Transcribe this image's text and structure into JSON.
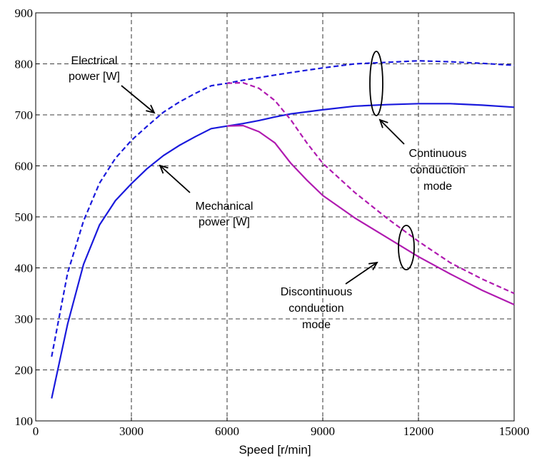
{
  "chart_data": {
    "type": "line",
    "xlabel": "Speed [r/min]",
    "ylabel": "",
    "xlim": [
      0,
      15000
    ],
    "ylim": [
      100,
      900
    ],
    "xticks": [
      0,
      3000,
      6000,
      9000,
      12000,
      15000
    ],
    "yticks": [
      100,
      200,
      300,
      400,
      500,
      600,
      700,
      800,
      900
    ],
    "grid": true,
    "colors": {
      "continuous": "#1a1adc",
      "discontinuous": "#b01ab0",
      "ink": "#000000"
    },
    "series": [
      {
        "id": "elec_cont",
        "style": "dashed",
        "color": "#1a1adc",
        "x": [
          500,
          1000,
          1500,
          2000,
          2500,
          3000,
          3500,
          4000,
          4500,
          5000,
          5500,
          6000,
          6500,
          7000,
          7500,
          8000,
          9000,
          10000,
          11000,
          12000,
          13000,
          14000,
          15000
        ],
        "y": [
          226,
          390,
          492,
          566,
          615,
          650,
          678,
          705,
          725,
          742,
          757,
          762,
          768,
          773,
          778,
          783,
          792,
          800,
          803,
          806,
          804,
          801,
          797
        ]
      },
      {
        "id": "mech_cont",
        "style": "solid",
        "color": "#1a1adc",
        "x": [
          500,
          1000,
          1500,
          2000,
          2500,
          3000,
          3500,
          4000,
          4500,
          5000,
          5500,
          6000,
          6500,
          7000,
          7500,
          8000,
          9000,
          10000,
          11000,
          12000,
          13000,
          14000,
          15000
        ],
        "y": [
          144,
          290,
          407,
          484,
          532,
          565,
          595,
          620,
          640,
          657,
          673,
          678,
          683,
          689,
          696,
          702,
          710,
          717,
          720,
          722,
          722,
          719,
          715
        ]
      },
      {
        "id": "elec_disc",
        "style": "dashed",
        "color": "#b01ab0",
        "x": [
          6000,
          6500,
          7000,
          7500,
          8000,
          8500,
          9000,
          10000,
          11000,
          12000,
          13000,
          14000,
          15000
        ],
        "y": [
          762,
          763,
          752,
          728,
          690,
          645,
          605,
          548,
          498,
          452,
          410,
          378,
          350
        ]
      },
      {
        "id": "mech_disc",
        "style": "solid",
        "color": "#b01ab0",
        "x": [
          6000,
          6500,
          7000,
          7500,
          8000,
          8500,
          9000,
          10000,
          11000,
          12000,
          13000,
          14000,
          15000
        ],
        "y": [
          678,
          679,
          667,
          645,
          605,
          572,
          542,
          498,
          460,
          422,
          388,
          356,
          328
        ]
      }
    ],
    "annotations": [
      {
        "id": "ann_elec",
        "lines": [
          "Electrical",
          "power [W]"
        ]
      },
      {
        "id": "ann_mech",
        "lines": [
          "Mechanical",
          "power [W]"
        ]
      },
      {
        "id": "ann_cont",
        "lines": [
          "Continuous",
          "conduction",
          "mode"
        ]
      },
      {
        "id": "ann_disc",
        "lines": [
          "Discontinuous",
          "conduction",
          "mode"
        ]
      }
    ]
  }
}
